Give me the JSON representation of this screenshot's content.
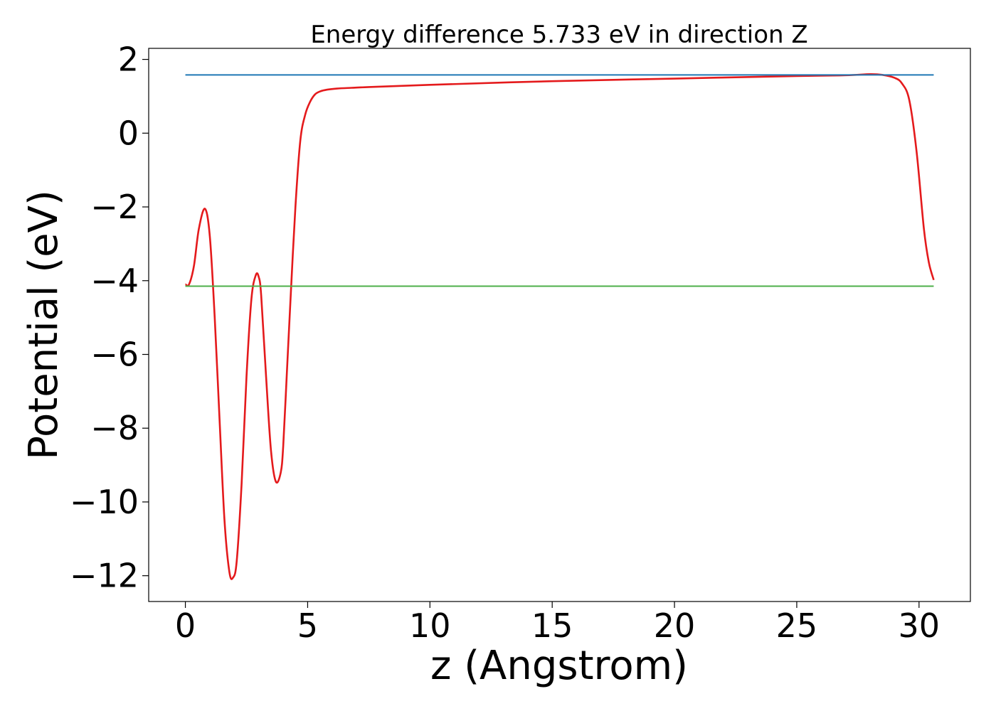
{
  "chart_data": {
    "type": "line",
    "title": "Energy difference 5.733 eV in direction Z",
    "xlabel": "z (Angstrom)",
    "ylabel": "Potential (eV)",
    "xlim": [
      -1.5,
      32.1
    ],
    "ylim": [
      -12.7,
      2.3
    ],
    "xticks": [
      0,
      5,
      10,
      15,
      20,
      25,
      30
    ],
    "xtick_labels": [
      "0",
      "5",
      "10",
      "15",
      "20",
      "25",
      "30"
    ],
    "yticks": [
      2,
      0,
      -2,
      -4,
      -6,
      -8,
      -10,
      -12
    ],
    "ytick_labels": [
      "2",
      "0",
      "−2",
      "−4",
      "−6",
      "−8",
      "−10",
      "−12"
    ],
    "grid": false,
    "legend": "none",
    "series": [
      {
        "color": "#e41a1c",
        "x": [
          0.0,
          0.15,
          0.35,
          0.55,
          0.8,
          1.0,
          1.2,
          1.4,
          1.6,
          1.8,
          1.95,
          2.1,
          2.3,
          2.5,
          2.7,
          2.88,
          3.0,
          3.1,
          3.3,
          3.5,
          3.7,
          3.9,
          4.0,
          4.15,
          4.3,
          4.5,
          4.7,
          4.9,
          5.1,
          5.3,
          5.5,
          5.8,
          6.2,
          6.8,
          7.5,
          10.0,
          15.0,
          20.0,
          25.0,
          27.0,
          28.0,
          28.5,
          29.0,
          29.3,
          29.6,
          29.9,
          30.2,
          30.4,
          30.6
        ],
        "y": [
          -4.1,
          -4.1,
          -3.6,
          -2.6,
          -2.05,
          -2.8,
          -5.0,
          -7.8,
          -10.5,
          -11.9,
          -12.05,
          -11.6,
          -9.5,
          -6.6,
          -4.5,
          -3.85,
          -3.9,
          -4.4,
          -6.6,
          -8.6,
          -9.45,
          -9.2,
          -8.5,
          -6.5,
          -4.5,
          -2.0,
          -0.2,
          0.5,
          0.85,
          1.05,
          1.13,
          1.18,
          1.21,
          1.23,
          1.25,
          1.31,
          1.41,
          1.48,
          1.55,
          1.57,
          1.6,
          1.58,
          1.5,
          1.35,
          0.9,
          -0.5,
          -2.6,
          -3.5,
          -3.98
        ]
      },
      {
        "color": "#1f77b4",
        "x": [
          0.0,
          30.6
        ],
        "y": [
          1.58,
          1.58
        ]
      },
      {
        "color": "#4daf4a",
        "x": [
          0.0,
          30.6
        ],
        "y": [
          -4.15,
          -4.15
        ]
      }
    ]
  }
}
